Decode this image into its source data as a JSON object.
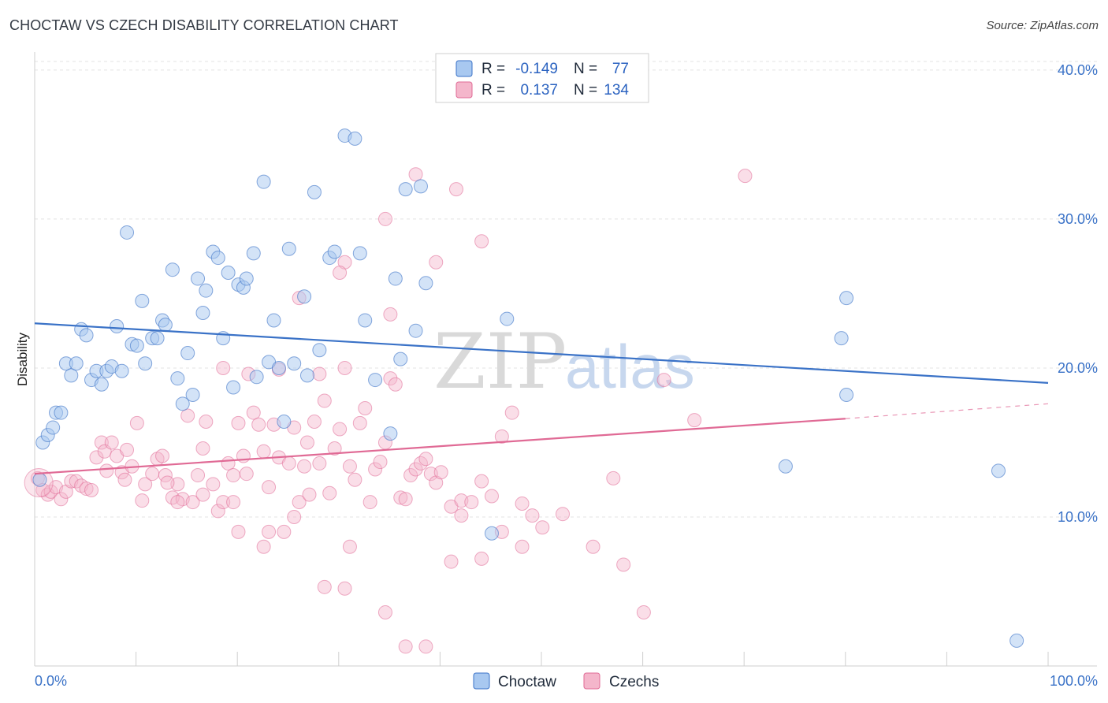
{
  "title": "CHOCTAW VS CZECH DISABILITY CORRELATION CHART",
  "source": "Source: ZipAtlas.com",
  "watermark": {
    "zip": "ZIP",
    "atlas": "atlas"
  },
  "legend_top": {
    "rows": [
      {
        "r_label": "R =",
        "r_value": "-0.149",
        "n_label": "N =",
        "n_value": "77",
        "color": "#a8c8f0"
      },
      {
        "r_label": "R =",
        "r_value": "0.137",
        "n_label": "N =",
        "n_value": "134",
        "color": "#f4b6cb"
      }
    ]
  },
  "legend_bottom": {
    "items": [
      {
        "label": "Choctaw",
        "color": "#a8c8f0"
      },
      {
        "label": "Czechs",
        "color": "#f4b6cb"
      }
    ]
  },
  "colors": {
    "blue": "#3a72c7",
    "blue_fill": "#a8c8f0",
    "pink": "#e06a95",
    "pink_fill": "#f4b6cb"
  },
  "chart_data": {
    "type": "scatter",
    "xlabel": "",
    "ylabel": "Disability",
    "xlim": [
      0,
      100
    ],
    "ylim": [
      0,
      41
    ],
    "x_tick_labels": [
      "0.0%",
      "100.0%"
    ],
    "y_ticks": [
      10,
      20,
      30,
      40
    ],
    "y_tick_labels": [
      "10.0%",
      "20.0%",
      "30.0%",
      "40.0%"
    ],
    "grid": true,
    "series": [
      {
        "name": "Choctaw",
        "trend": {
          "x": [
            0,
            100
          ],
          "y": [
            23.0,
            19.0
          ]
        },
        "points": [
          [
            0.5,
            12.5
          ],
          [
            0.8,
            15.0
          ],
          [
            1.3,
            15.5
          ],
          [
            1.8,
            16.0
          ],
          [
            2.1,
            17.0
          ],
          [
            2.6,
            17.0
          ],
          [
            3.1,
            20.3
          ],
          [
            3.6,
            19.5
          ],
          [
            4.1,
            20.3
          ],
          [
            4.6,
            22.6
          ],
          [
            5.1,
            22.2
          ],
          [
            5.6,
            19.2
          ],
          [
            6.1,
            19.8
          ],
          [
            6.6,
            18.9
          ],
          [
            7.1,
            19.8
          ],
          [
            7.6,
            20.1
          ],
          [
            8.1,
            22.8
          ],
          [
            8.6,
            19.8
          ],
          [
            9.1,
            29.1
          ],
          [
            9.6,
            21.6
          ],
          [
            10.1,
            21.5
          ],
          [
            10.6,
            24.5
          ],
          [
            10.9,
            20.3
          ],
          [
            11.6,
            22.0
          ],
          [
            12.1,
            22.0
          ],
          [
            12.6,
            23.2
          ],
          [
            12.9,
            22.9
          ],
          [
            13.6,
            26.6
          ],
          [
            14.1,
            19.3
          ],
          [
            14.6,
            17.6
          ],
          [
            15.1,
            21.0
          ],
          [
            15.6,
            18.2
          ],
          [
            16.1,
            26.0
          ],
          [
            16.6,
            23.7
          ],
          [
            16.9,
            25.2
          ],
          [
            17.6,
            27.8
          ],
          [
            18.1,
            27.4
          ],
          [
            18.6,
            22.0
          ],
          [
            19.1,
            26.4
          ],
          [
            19.6,
            18.7
          ],
          [
            20.1,
            25.6
          ],
          [
            20.6,
            25.4
          ],
          [
            20.9,
            26.0
          ],
          [
            21.6,
            27.7
          ],
          [
            21.9,
            19.4
          ],
          [
            22.6,
            32.5
          ],
          [
            23.1,
            20.4
          ],
          [
            23.6,
            23.2
          ],
          [
            24.1,
            20.0
          ],
          [
            24.6,
            16.4
          ],
          [
            25.1,
            28.0
          ],
          [
            25.6,
            20.3
          ],
          [
            26.6,
            24.8
          ],
          [
            26.9,
            19.5
          ],
          [
            27.6,
            31.8
          ],
          [
            28.1,
            21.2
          ],
          [
            29.1,
            27.4
          ],
          [
            29.6,
            27.8
          ],
          [
            30.6,
            35.6
          ],
          [
            31.6,
            35.4
          ],
          [
            32.1,
            27.7
          ],
          [
            32.6,
            23.2
          ],
          [
            33.6,
            19.2
          ],
          [
            35.1,
            15.6
          ],
          [
            35.6,
            26.0
          ],
          [
            36.1,
            20.6
          ],
          [
            36.6,
            32.0
          ],
          [
            37.6,
            22.5
          ],
          [
            38.1,
            32.2
          ],
          [
            38.6,
            25.7
          ],
          [
            45.1,
            8.9
          ],
          [
            46.6,
            23.3
          ],
          [
            74.1,
            13.4
          ],
          [
            80.1,
            18.2
          ],
          [
            95.1,
            13.1
          ],
          [
            96.9,
            1.7
          ],
          [
            79.6,
            22.0
          ],
          [
            80.1,
            24.7
          ]
        ]
      },
      {
        "name": "Czechs",
        "trend": {
          "x": [
            0,
            80
          ],
          "y": [
            12.9,
            16.6
          ]
        },
        "trend_dashed": {
          "x": [
            80,
            100
          ],
          "y": [
            16.6,
            17.6
          ]
        },
        "points": [
          [
            0.3,
            12.6
          ],
          [
            0.8,
            11.8
          ],
          [
            1.3,
            11.5
          ],
          [
            1.6,
            11.7
          ],
          [
            2.1,
            12.0
          ],
          [
            2.6,
            11.2
          ],
          [
            3.1,
            11.7
          ],
          [
            3.6,
            12.4
          ],
          [
            4.1,
            12.4
          ],
          [
            4.6,
            12.1
          ],
          [
            5.1,
            11.9
          ],
          [
            5.6,
            11.8
          ],
          [
            6.1,
            14.0
          ],
          [
            6.6,
            15.0
          ],
          [
            6.9,
            14.4
          ],
          [
            7.1,
            13.1
          ],
          [
            7.6,
            15.0
          ],
          [
            8.1,
            14.1
          ],
          [
            8.6,
            13.0
          ],
          [
            8.9,
            12.5
          ],
          [
            9.1,
            14.5
          ],
          [
            9.6,
            13.4
          ],
          [
            10.1,
            16.3
          ],
          [
            10.6,
            11.1
          ],
          [
            10.9,
            12.2
          ],
          [
            11.6,
            12.9
          ],
          [
            12.1,
            13.9
          ],
          [
            12.6,
            14.1
          ],
          [
            12.9,
            12.8
          ],
          [
            13.6,
            11.3
          ],
          [
            14.1,
            12.2
          ],
          [
            14.6,
            11.2
          ],
          [
            15.1,
            16.8
          ],
          [
            15.6,
            11.0
          ],
          [
            16.1,
            12.8
          ],
          [
            16.6,
            14.6
          ],
          [
            16.9,
            16.4
          ],
          [
            17.6,
            12.2
          ],
          [
            18.1,
            10.4
          ],
          [
            18.6,
            11.0
          ],
          [
            19.1,
            13.6
          ],
          [
            19.6,
            12.8
          ],
          [
            20.1,
            16.3
          ],
          [
            20.6,
            14.1
          ],
          [
            20.9,
            12.9
          ],
          [
            21.6,
            17.0
          ],
          [
            22.1,
            16.2
          ],
          [
            22.6,
            14.4
          ],
          [
            23.1,
            12.0
          ],
          [
            23.6,
            16.2
          ],
          [
            24.1,
            14.0
          ],
          [
            24.6,
            9.0
          ],
          [
            25.1,
            13.6
          ],
          [
            25.6,
            16.0
          ],
          [
            26.1,
            11.0
          ],
          [
            26.6,
            13.4
          ],
          [
            26.9,
            15.0
          ],
          [
            27.6,
            16.4
          ],
          [
            28.1,
            13.6
          ],
          [
            28.6,
            17.8
          ],
          [
            29.1,
            11.6
          ],
          [
            29.6,
            14.6
          ],
          [
            30.1,
            15.9
          ],
          [
            30.6,
            27.1
          ],
          [
            31.1,
            13.4
          ],
          [
            31.6,
            12.5
          ],
          [
            32.1,
            16.3
          ],
          [
            32.6,
            17.3
          ],
          [
            33.1,
            11.0
          ],
          [
            33.6,
            13.2
          ],
          [
            34.1,
            13.7
          ],
          [
            34.6,
            15.0
          ],
          [
            35.1,
            19.3
          ],
          [
            35.6,
            18.9
          ],
          [
            36.1,
            11.3
          ],
          [
            36.6,
            11.2
          ],
          [
            37.1,
            12.8
          ],
          [
            37.6,
            13.2
          ],
          [
            38.1,
            13.6
          ],
          [
            38.6,
            13.9
          ],
          [
            39.1,
            12.9
          ],
          [
            39.6,
            12.3
          ],
          [
            40.1,
            13.0
          ],
          [
            41.1,
            10.7
          ],
          [
            42.1,
            11.1
          ],
          [
            43.1,
            11.0
          ],
          [
            44.1,
            12.4
          ],
          [
            45.1,
            11.4
          ],
          [
            46.1,
            15.4
          ],
          [
            47.1,
            17.0
          ],
          [
            48.1,
            10.9
          ],
          [
            49.1,
            10.1
          ],
          [
            50.1,
            9.3
          ],
          [
            52.1,
            10.2
          ],
          [
            55.1,
            8.0
          ],
          [
            57.1,
            12.6
          ],
          [
            58.1,
            6.8
          ],
          [
            60.1,
            3.6
          ],
          [
            62.1,
            19.2
          ],
          [
            65.1,
            16.5
          ],
          [
            37.6,
            33.0
          ],
          [
            41.6,
            32.0
          ],
          [
            70.1,
            32.9
          ],
          [
            44.1,
            28.5
          ],
          [
            34.6,
            30.0
          ],
          [
            39.6,
            27.1
          ],
          [
            30.1,
            26.4
          ],
          [
            35.1,
            23.6
          ],
          [
            26.1,
            24.7
          ],
          [
            30.6,
            20.0
          ],
          [
            28.1,
            19.6
          ],
          [
            24.1,
            19.9
          ],
          [
            21.1,
            19.6
          ],
          [
            18.6,
            20.0
          ],
          [
            38.6,
            1.3
          ],
          [
            36.6,
            1.3
          ],
          [
            28.6,
            5.3
          ],
          [
            30.6,
            5.2
          ],
          [
            34.6,
            3.6
          ],
          [
            41.1,
            7.0
          ],
          [
            44.1,
            7.2
          ],
          [
            46.1,
            9.0
          ],
          [
            48.1,
            8.0
          ],
          [
            25.6,
            10.0
          ],
          [
            23.1,
            9.0
          ],
          [
            20.1,
            9.0
          ],
          [
            22.6,
            8.0
          ],
          [
            31.1,
            8.0
          ],
          [
            42.1,
            10.1
          ],
          [
            19.6,
            11.0
          ],
          [
            16.6,
            11.5
          ],
          [
            14.1,
            11.0
          ],
          [
            27.1,
            11.5
          ],
          [
            13.1,
            12.3
          ]
        ]
      }
    ]
  }
}
